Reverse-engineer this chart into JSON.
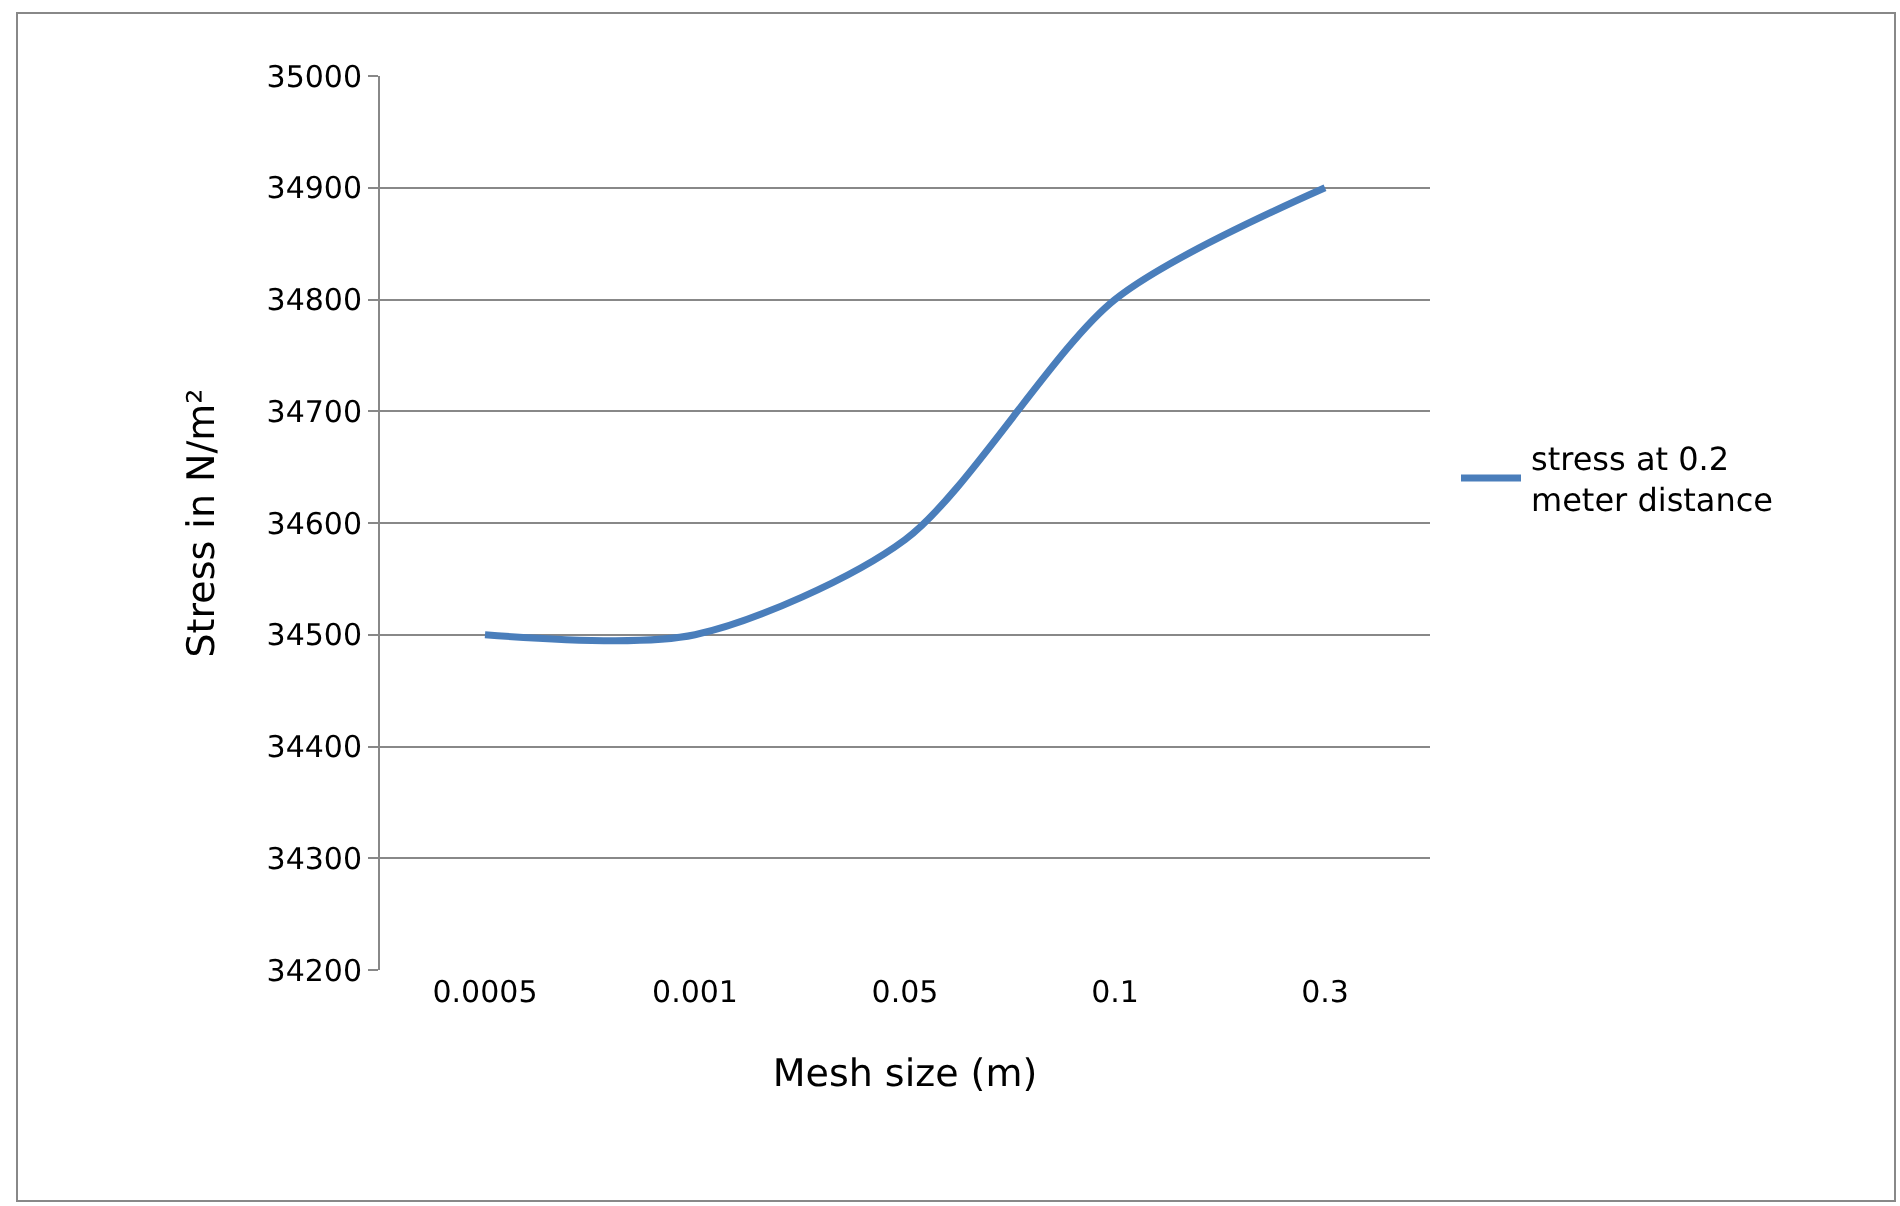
{
  "chart_data": {
    "type": "line",
    "xlabel": "Mesh size (m)",
    "ylabel": "Stress in N/m²",
    "categories": [
      "0.0005",
      "0.001",
      "0.05",
      "0.1",
      "0.3"
    ],
    "series": [
      {
        "name": "stress at 0.2 meter distance",
        "color": "#4a7ebb",
        "values": [
          34500,
          34500,
          34585,
          34800,
          34900
        ]
      }
    ],
    "ylim": [
      34200,
      35000
    ],
    "yticks": [
      34200,
      34300,
      34400,
      34500,
      34600,
      34700,
      34800,
      34900,
      35000
    ],
    "grid": "y",
    "legend": "right",
    "marker": "none"
  }
}
